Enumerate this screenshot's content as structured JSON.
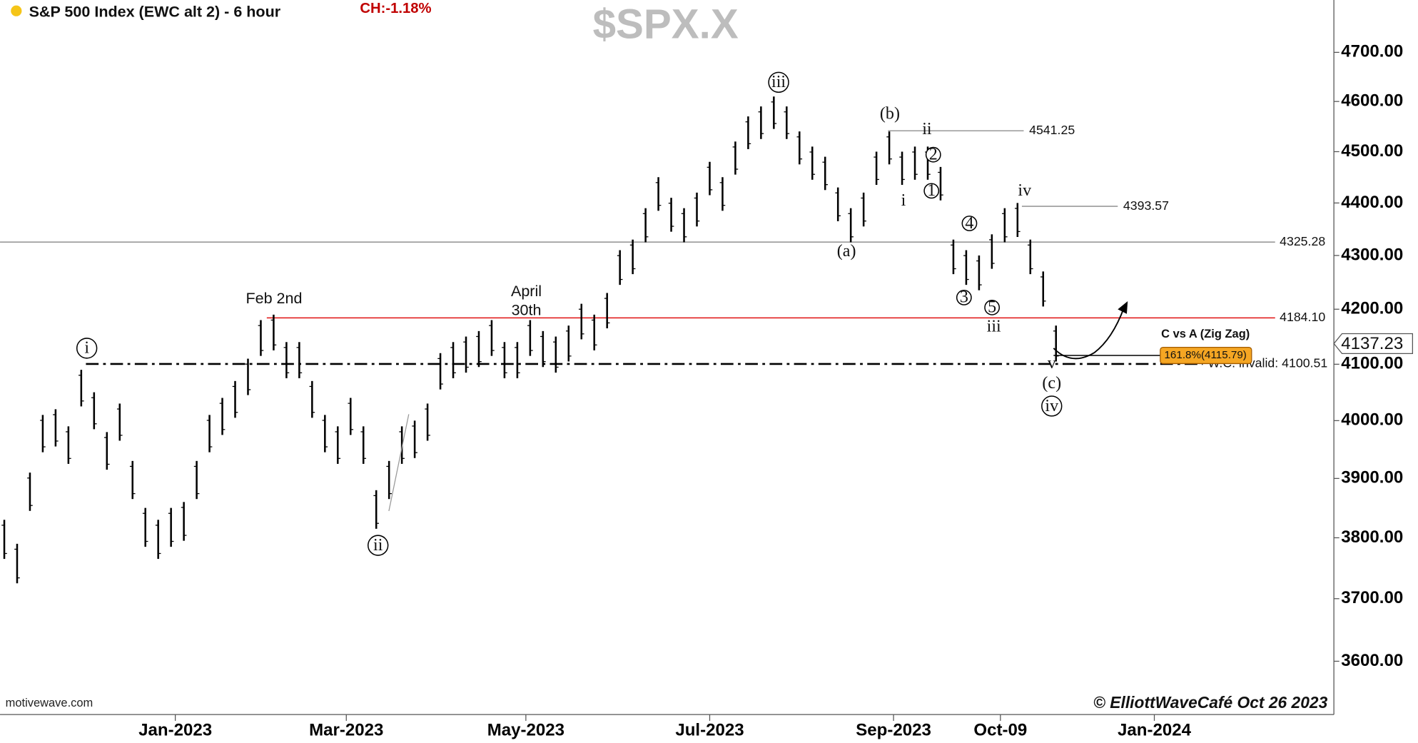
{
  "chart_data": {
    "type": "ohlc",
    "header": "S&P 500 Index (EWC alt 2) - 6 hour",
    "change": "CH:-1.18%",
    "title": "$SPX.X",
    "source": "motivewave.com",
    "credit": "© ElliottWaveCafé Oct 26 2023",
    "log_y": true,
    "grid": false,
    "color": "#000000",
    "xlim": [
      -41,
      271
    ],
    "xticks": [
      {
        "value": 0,
        "label": "Jan-2023"
      },
      {
        "value": 40,
        "label": "Mar-2023"
      },
      {
        "value": 82,
        "label": "May-2023"
      },
      {
        "value": 125,
        "label": "Jul-2023"
      },
      {
        "value": 168,
        "label": "Sep-2023"
      },
      {
        "value": 193,
        "label": "Oct-09"
      },
      {
        "value": 229,
        "label": "Jan-2024"
      }
    ],
    "ylim": [
      3517,
      4809
    ],
    "yticks": [
      {
        "value": 3600,
        "label": "3600.00"
      },
      {
        "value": 3700,
        "label": "3700.00"
      },
      {
        "value": 3800,
        "label": "3800.00"
      },
      {
        "value": 3900,
        "label": "3900.00"
      },
      {
        "value": 4000,
        "label": "4000.00"
      },
      {
        "value": 4100,
        "label": "4100.00"
      },
      {
        "value": 4200,
        "label": "4200.00"
      },
      {
        "value": 4300,
        "label": "4300.00"
      },
      {
        "value": 4400,
        "label": "4400.00"
      },
      {
        "value": 4500,
        "label": "4500.00"
      },
      {
        "value": 4600,
        "label": "4600.00"
      },
      {
        "value": 4700,
        "label": "4700.00"
      }
    ],
    "x": [
      -40,
      -37,
      -34,
      -31,
      -28,
      -25,
      -22,
      -19,
      -16,
      -13,
      -10,
      -7,
      -4,
      -1,
      2,
      5,
      8,
      11,
      14,
      17,
      20,
      23,
      26,
      29,
      32,
      35,
      38,
      41,
      44,
      47,
      50,
      53,
      56,
      59,
      62,
      65,
      68,
      71,
      74,
      77,
      80,
      83,
      86,
      89,
      92,
      95,
      98,
      101,
      104,
      107,
      110,
      113,
      116,
      119,
      122,
      125,
      128,
      131,
      134,
      137,
      140,
      143,
      146,
      149,
      152,
      155,
      158,
      161,
      164,
      167,
      170,
      173,
      176,
      179,
      182,
      185,
      188,
      191,
      194,
      197,
      200,
      203,
      206
    ],
    "high": [
      3830,
      3790,
      3910,
      4010,
      4020,
      3990,
      4090,
      4050,
      3980,
      4030,
      3930,
      3850,
      3830,
      3850,
      3860,
      3930,
      4010,
      4040,
      4070,
      4110,
      4180,
      4190,
      4140,
      4140,
      4070,
      4010,
      3990,
      4040,
      3990,
      3880,
      3930,
      3990,
      4000,
      4030,
      4120,
      4140,
      4150,
      4160,
      4180,
      4140,
      4140,
      4180,
      4160,
      4150,
      4170,
      4210,
      4190,
      4230,
      4310,
      4330,
      4390,
      4450,
      4410,
      4390,
      4420,
      4480,
      4450,
      4520,
      4570,
      4590,
      4610,
      4590,
      4540,
      4510,
      4490,
      4430,
      4390,
      4420,
      4500,
      4540,
      4500,
      4510,
      4510,
      4470,
      4330,
      4310,
      4300,
      4340,
      4390,
      4400,
      4330,
      4270,
      4170
    ],
    "low": [
      3765,
      3725,
      3845,
      3945,
      3955,
      3925,
      4025,
      3985,
      3915,
      3965,
      3865,
      3785,
      3765,
      3785,
      3795,
      3865,
      3945,
      3975,
      4005,
      4045,
      4115,
      4125,
      4075,
      4075,
      4005,
      3945,
      3925,
      3975,
      3925,
      3815,
      3865,
      3925,
      3935,
      3965,
      4055,
      4075,
      4085,
      4095,
      4115,
      4075,
      4075,
      4115,
      4095,
      4085,
      4105,
      4145,
      4125,
      4165,
      4245,
      4265,
      4325,
      4385,
      4345,
      4325,
      4355,
      4415,
      4385,
      4455,
      4505,
      4525,
      4545,
      4525,
      4475,
      4445,
      4425,
      4365,
      4325,
      4355,
      4435,
      4475,
      4435,
      4445,
      4445,
      4405,
      4265,
      4245,
      4235,
      4275,
      4325,
      4335,
      4265,
      4205,
      4105
    ],
    "levels": [
      {
        "value": 4325.28,
        "color": "#999999",
        "style": "solid"
      },
      {
        "value": 4184.1,
        "label": "4184.10",
        "color": "#e01010",
        "style": "solid"
      },
      {
        "value": 4100.51,
        "label": "W.C. invalid: 4100.51",
        "color": "#000000",
        "style": "dashdot"
      },
      {
        "value": 4541.25,
        "color": "#999999",
        "style": "solid"
      },
      {
        "value": 4393.57,
        "color": "#999999",
        "style": "solid"
      }
    ],
    "fib": {
      "value": 4115.79,
      "label": "161.8%(4115.79)",
      "color": "#f5a623"
    },
    "fib_title": "C vs A (Zig Zag)",
    "last_price": 4137.23,
    "annotations": [
      {
        "text": "i",
        "circled": true
      },
      {
        "text": "Feb 2nd",
        "circled": false
      },
      {
        "text": "ii",
        "circled": true
      },
      {
        "text": "April",
        "circled": false
      },
      {
        "text": "30th",
        "circled": false
      },
      {
        "text": "iii",
        "circled": true
      },
      {
        "text": "(a)",
        "circled": false
      },
      {
        "text": "(b)",
        "circled": false
      },
      {
        "text": "ii",
        "circled": false
      },
      {
        "text": "i",
        "circled": false
      },
      {
        "text": "2",
        "circled": true
      },
      {
        "text": "1",
        "circled": true
      },
      {
        "text": "4",
        "circled": true
      },
      {
        "text": "3",
        "circled": true
      },
      {
        "text": "5",
        "circled": true
      },
      {
        "text": "iii",
        "circled": false
      },
      {
        "text": "iv",
        "circled": false
      },
      {
        "text": "v",
        "circled": false
      },
      {
        "text": "(c)",
        "circled": false
      },
      {
        "text": "iv",
        "circled": true
      }
    ]
  }
}
